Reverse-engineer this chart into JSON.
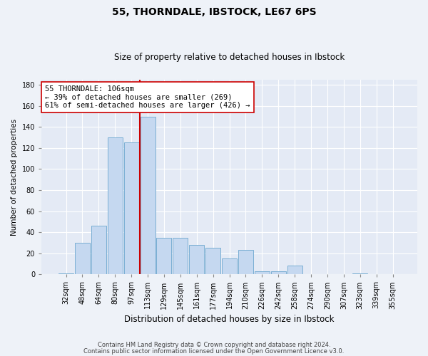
{
  "title1": "55, THORNDALE, IBSTOCK, LE67 6PS",
  "title2": "Size of property relative to detached houses in Ibstock",
  "xlabel": "Distribution of detached houses by size in Ibstock",
  "ylabel": "Number of detached properties",
  "categories": [
    "32sqm",
    "48sqm",
    "64sqm",
    "80sqm",
    "97sqm",
    "113sqm",
    "129sqm",
    "145sqm",
    "161sqm",
    "177sqm",
    "194sqm",
    "210sqm",
    "226sqm",
    "242sqm",
    "258sqm",
    "274sqm",
    "290sqm",
    "307sqm",
    "323sqm",
    "339sqm",
    "355sqm"
  ],
  "values": [
    1,
    30,
    46,
    130,
    125,
    150,
    35,
    35,
    28,
    25,
    15,
    23,
    3,
    3,
    8,
    0,
    0,
    0,
    1,
    0,
    0
  ],
  "bar_color": "#c5d8f0",
  "bar_edge_color": "#7bafd4",
  "vline_x_index": 5,
  "vline_color": "#cc0000",
  "annotation_text": "55 THORNDALE: 106sqm\n← 39% of detached houses are smaller (269)\n61% of semi-detached houses are larger (426) →",
  "annotation_box_color": "#ffffff",
  "annotation_box_edge": "#cc0000",
  "ylim": [
    0,
    185
  ],
  "yticks": [
    0,
    20,
    40,
    60,
    80,
    100,
    120,
    140,
    160,
    180
  ],
  "footer1": "Contains HM Land Registry data © Crown copyright and database right 2024.",
  "footer2": "Contains public sector information licensed under the Open Government Licence v3.0.",
  "bg_color": "#eef2f8",
  "plot_bg_color": "#e4eaf5",
  "title1_fontsize": 10,
  "title2_fontsize": 8.5,
  "xlabel_fontsize": 8.5,
  "ylabel_fontsize": 7.5,
  "tick_fontsize": 7,
  "footer_fontsize": 6
}
